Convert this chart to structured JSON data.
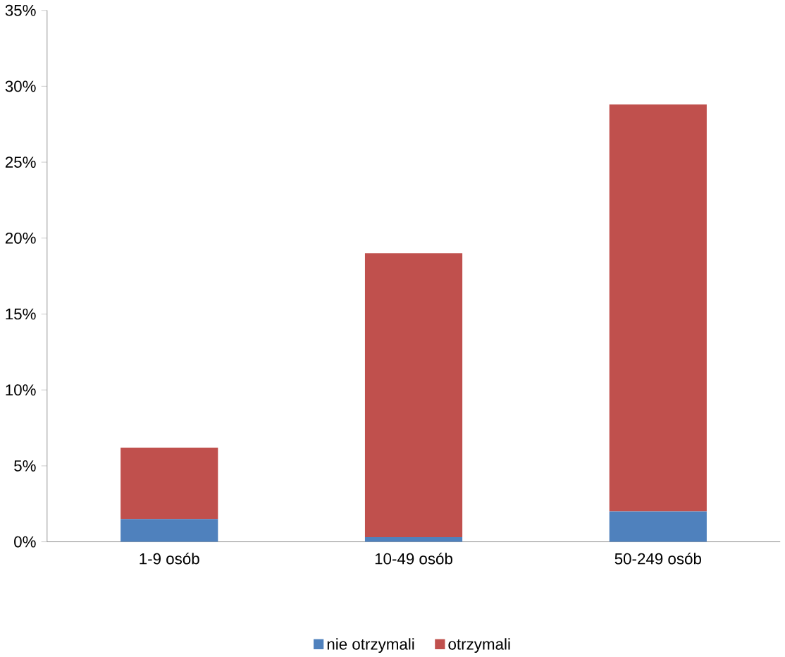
{
  "chart_data": {
    "type": "bar",
    "stacked": true,
    "categories": [
      "1-9 osób",
      "10-49 osób",
      "50-249 osób"
    ],
    "series": [
      {
        "name": "nie otrzymali",
        "color": "#4f81bd",
        "values": [
          1.5,
          0.3,
          2.0
        ]
      },
      {
        "name": "otrzymali",
        "color": "#c0504d",
        "values": [
          4.7,
          18.7,
          26.8
        ]
      }
    ],
    "ylim": [
      0,
      35
    ],
    "yticks": [
      {
        "value": 0,
        "label": "0%"
      },
      {
        "value": 5,
        "label": "5%"
      },
      {
        "value": 10,
        "label": "10%"
      },
      {
        "value": 15,
        "label": "15%"
      },
      {
        "value": 20,
        "label": "20%"
      },
      {
        "value": 25,
        "label": "25%"
      },
      {
        "value": 30,
        "label": "30%"
      },
      {
        "value": 35,
        "label": "35%"
      }
    ],
    "grid": false,
    "legend": "bottom"
  }
}
